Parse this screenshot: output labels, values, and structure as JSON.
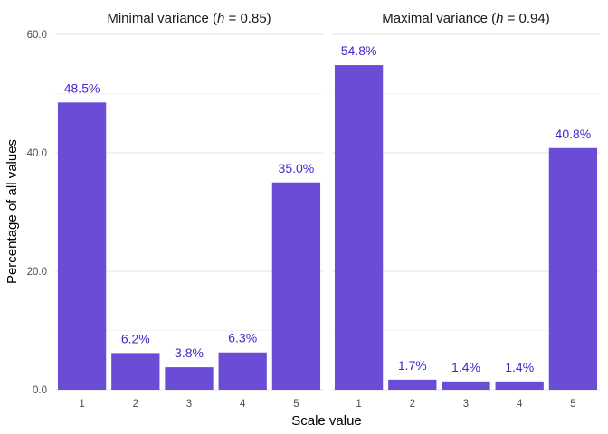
{
  "chart_data": {
    "type": "bar",
    "xlabel": "Scale value",
    "ylabel": "Percentage of all values",
    "ylim": [
      0,
      60
    ],
    "y_ticks": [
      "0.0",
      "20.0",
      "40.0",
      "60.0"
    ],
    "y_tick_values": [
      0,
      20,
      40,
      60
    ],
    "grid": true,
    "bar_color": "#6a4cd6",
    "label_color": "#4b23c8",
    "facets": [
      {
        "title_prefix": "Minimal variance (",
        "title_italic": "h",
        "title_suffix": " = 0.85)",
        "categories": [
          "1",
          "2",
          "3",
          "4",
          "5"
        ],
        "values": [
          48.5,
          6.2,
          3.8,
          6.3,
          35.0
        ],
        "labels": [
          "48.5%",
          "6.2%",
          "3.8%",
          "6.3%",
          "35.0%"
        ]
      },
      {
        "title_prefix": "Maximal variance (",
        "title_italic": "h",
        "title_suffix": " = 0.94)",
        "categories": [
          "1",
          "2",
          "3",
          "4",
          "5"
        ],
        "values": [
          54.8,
          1.7,
          1.4,
          1.4,
          40.8
        ],
        "labels": [
          "54.8%",
          "1.7%",
          "1.4%",
          "1.4%",
          "40.8%"
        ]
      }
    ]
  }
}
